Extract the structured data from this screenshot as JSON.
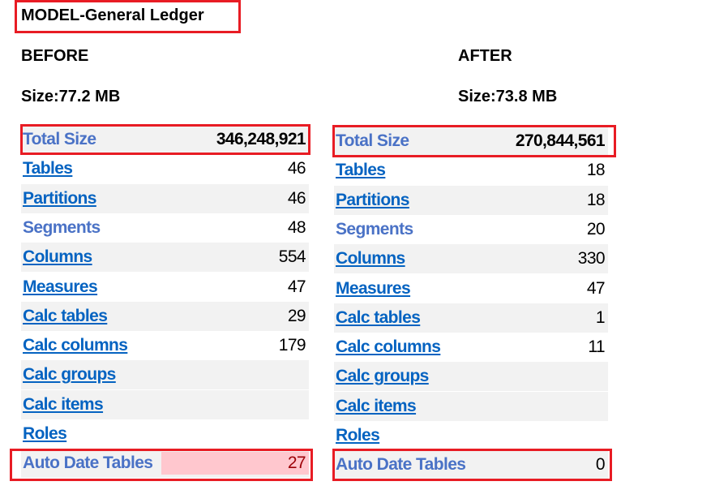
{
  "title": "MODEL-General Ledger",
  "before": {
    "heading": "BEFORE",
    "size": "Size:77.2 MB",
    "rows": [
      {
        "label": "Total Size",
        "value": "346,248,921"
      },
      {
        "label": "Tables",
        "value": "46"
      },
      {
        "label": "Partitions",
        "value": "46"
      },
      {
        "label": "Segments",
        "value": "48"
      },
      {
        "label": "Columns",
        "value": "554"
      },
      {
        "label": "Measures",
        "value": "47"
      },
      {
        "label": "Calc tables",
        "value": "29"
      },
      {
        "label": "Calc columns",
        "value": "179"
      },
      {
        "label": "Calc groups",
        "value": ""
      },
      {
        "label": "Calc items",
        "value": ""
      },
      {
        "label": "Roles",
        "value": ""
      },
      {
        "label": "Auto Date Tables",
        "value": "27"
      }
    ]
  },
  "after": {
    "heading": "AFTER",
    "size": "Size:73.8 MB",
    "rows": [
      {
        "label": "Total Size",
        "value": "270,844,561"
      },
      {
        "label": "Tables",
        "value": "18"
      },
      {
        "label": "Partitions",
        "value": "18"
      },
      {
        "label": "Segments",
        "value": "20"
      },
      {
        "label": "Columns",
        "value": "330"
      },
      {
        "label": "Measures",
        "value": "47"
      },
      {
        "label": "Calc tables",
        "value": "1"
      },
      {
        "label": "Calc columns",
        "value": "11"
      },
      {
        "label": "Calc groups",
        "value": ""
      },
      {
        "label": "Calc items",
        "value": ""
      },
      {
        "label": "Roles",
        "value": ""
      },
      {
        "label": "Auto Date Tables",
        "value": "0"
      }
    ]
  },
  "colors": {
    "highlight_box": "#e81c24",
    "link": "#0563c1",
    "bad_fill": "#ffc7ce",
    "bad_text": "#9c0006"
  }
}
